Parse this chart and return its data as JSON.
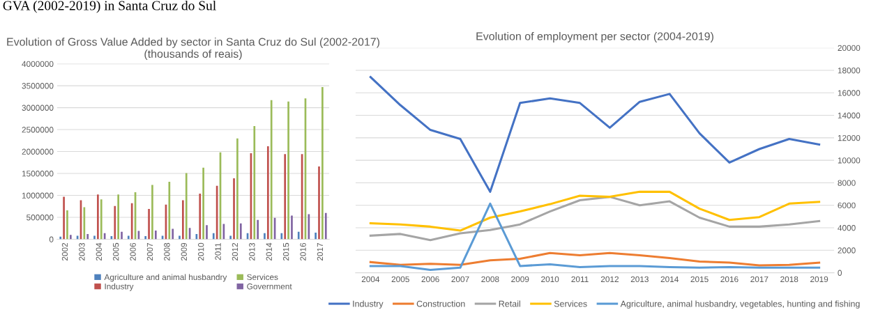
{
  "chart_data": [
    {
      "type": "bar",
      "title": "Evolution of Gross Value Added by sector in Santa Cruz do Sul (2002-2017) (thousands of reais)",
      "annotations": [
        "GVA (2002-2019) in Santa Cruz do Sul"
      ],
      "categories": [
        "2002",
        "2003",
        "2004",
        "2005",
        "2006",
        "2007",
        "2008",
        "2009",
        "2010",
        "2011",
        "2012",
        "2013",
        "2014",
        "2015",
        "2016",
        "2017"
      ],
      "series": [
        {
          "name": "Agriculture and animal husbandry",
          "color": "#4f81bd",
          "values": [
            60000,
            80000,
            80000,
            70000,
            80000,
            70000,
            80000,
            80000,
            120000,
            140000,
            80000,
            140000,
            140000,
            140000,
            170000,
            150000
          ]
        },
        {
          "name": "Industry",
          "color": "#c0504d",
          "values": [
            970000,
            890000,
            1020000,
            760000,
            820000,
            690000,
            790000,
            890000,
            1040000,
            1220000,
            1390000,
            1960000,
            2120000,
            1940000,
            1940000,
            1660000
          ]
        },
        {
          "name": "Services",
          "color": "#9bbb59",
          "values": [
            660000,
            730000,
            910000,
            1020000,
            1070000,
            1240000,
            1310000,
            1510000,
            1630000,
            1980000,
            2300000,
            2580000,
            3170000,
            3140000,
            3210000,
            3470000
          ]
        },
        {
          "name": "Government",
          "color": "#8064a2",
          "values": [
            100000,
            120000,
            140000,
            170000,
            190000,
            200000,
            240000,
            260000,
            320000,
            350000,
            360000,
            440000,
            490000,
            540000,
            570000,
            600000
          ]
        }
      ],
      "ylim": [
        0,
        4000000
      ],
      "yticks": [
        0,
        500000,
        1000000,
        1500000,
        2000000,
        2500000,
        3000000,
        3500000,
        4000000
      ],
      "grid": "y",
      "legend": "bottom"
    },
    {
      "type": "line",
      "title": "Evolution of employment per sector (2004-2019)",
      "categories": [
        "2004",
        "2005",
        "2006",
        "2007",
        "2008",
        "2009",
        "2010",
        "2011",
        "2012",
        "2013",
        "2014",
        "2015",
        "2016",
        "2017",
        "2018",
        "2019"
      ],
      "series": [
        {
          "name": "Industry",
          "color": "#4472c4",
          "axis": "y2",
          "values": [
            17400,
            14900,
            12700,
            11900,
            7200,
            15100,
            15500,
            15100,
            12900,
            15200,
            15900,
            12400,
            9800,
            11000,
            11900,
            11400
          ]
        },
        {
          "name": "Construction",
          "color": "#ed7d31",
          "axis": "y2",
          "values": [
            950,
            700,
            800,
            700,
            1100,
            1250,
            1750,
            1550,
            1750,
            1550,
            1300,
            1000,
            900,
            650,
            700,
            900
          ]
        },
        {
          "name": "Retail",
          "color": "#a5a5a5",
          "axis": "y2",
          "values": [
            3300,
            3450,
            2900,
            3500,
            3800,
            4300,
            5450,
            6450,
            6750,
            6000,
            6350,
            4900,
            4100,
            4100,
            4300,
            4600
          ]
        },
        {
          "name": "Services",
          "color": "#ffc000",
          "axis": "y2",
          "values": [
            4400,
            4300,
            4100,
            3750,
            4900,
            5450,
            6100,
            6850,
            6750,
            7200,
            7200,
            5700,
            4700,
            4950,
            6150,
            6300
          ]
        },
        {
          "name": "Agriculture, animal husbandry, vegetables, hunting and fishing",
          "color": "#5b9bd5",
          "axis": "y2",
          "values": [
            600,
            600,
            250,
            450,
            6150,
            600,
            750,
            500,
            600,
            600,
            500,
            450,
            500,
            450,
            450,
            450
          ]
        }
      ],
      "y2lim": [
        0,
        20000
      ],
      "y2ticks": [
        0,
        2000,
        4000,
        6000,
        8000,
        10000,
        12000,
        14000,
        16000,
        18000,
        20000
      ],
      "grid": "y",
      "legend": "bottom",
      "marker": "none",
      "line_style": "solid"
    }
  ]
}
